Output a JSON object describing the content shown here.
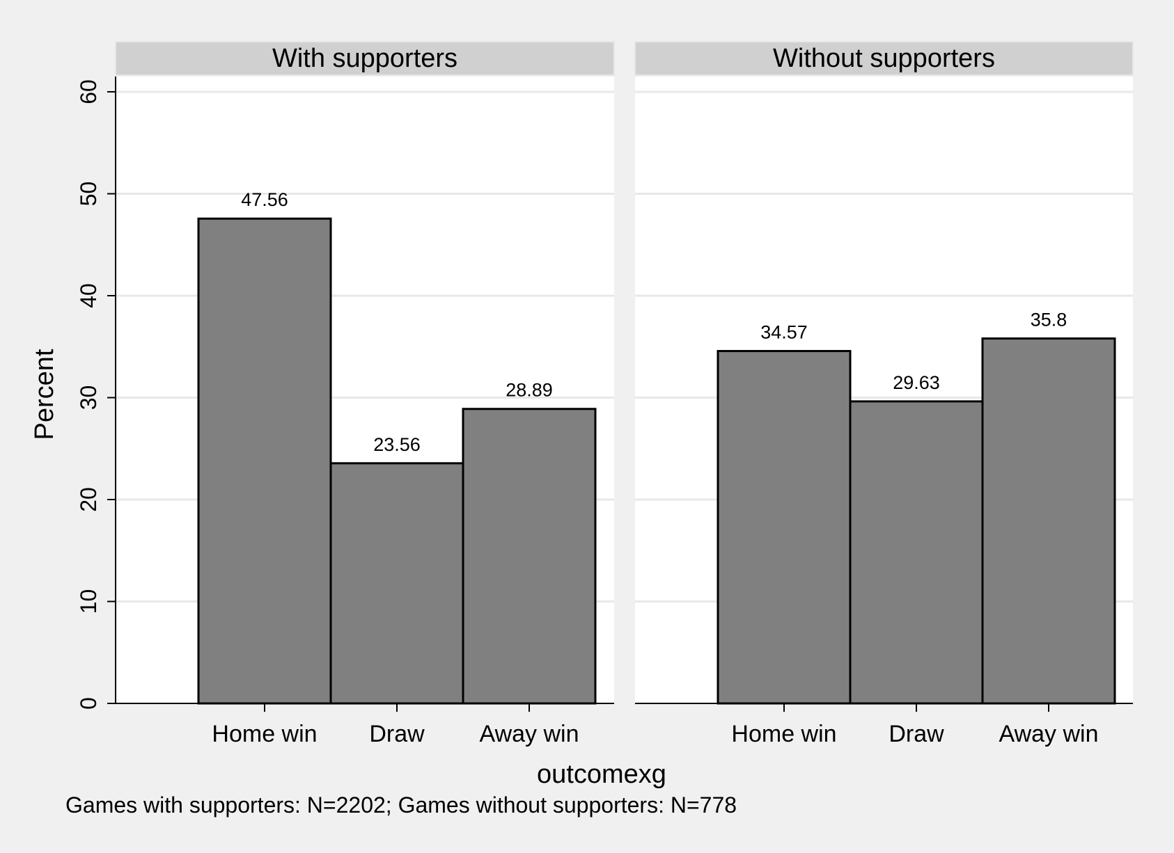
{
  "chart_data": {
    "type": "bar",
    "xlabel": "outcomexg",
    "ylabel": "Percent",
    "ylim": [
      0,
      60
    ],
    "yticks": [
      0,
      10,
      20,
      30,
      40,
      50,
      60
    ],
    "grid": true,
    "note": "Games with supporters: N=2202; Games without supporters: N=778",
    "colors": {
      "bar": "#808080",
      "bar_edge": "#000000",
      "strip": "#d0d0d0",
      "plot_bg": "#ffffff",
      "page_bg": "#f0f0f0",
      "grid": "#e8e8e8"
    },
    "panels": [
      {
        "title": "With supporters",
        "categories": [
          "Home win",
          "Draw",
          "Away win"
        ],
        "values": [
          47.56,
          23.56,
          28.89
        ],
        "value_labels": [
          "47.56",
          "23.56",
          "28.89"
        ]
      },
      {
        "title": "Without supporters",
        "categories": [
          "Home win",
          "Draw",
          "Away win"
        ],
        "values": [
          34.57,
          29.63,
          35.8
        ],
        "value_labels": [
          "34.57",
          "29.63",
          "35.8"
        ]
      }
    ]
  }
}
